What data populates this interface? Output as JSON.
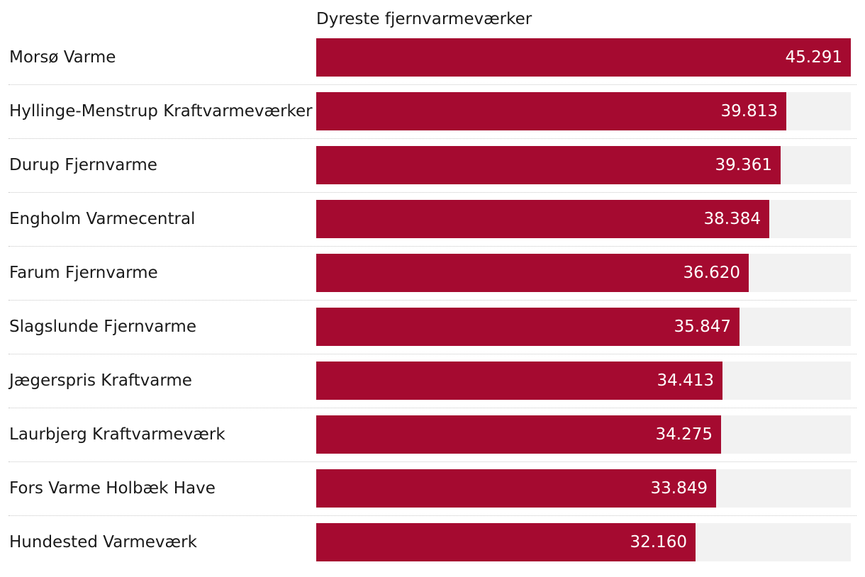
{
  "chart_data": {
    "type": "bar",
    "orientation": "horizontal",
    "title": "Dyreste fjernvarmeværker",
    "xlim": [
      0,
      45.291
    ],
    "bar_color": "#a50a30",
    "track_color": "#f2f2f2",
    "categories": [
      "Morsø Varme",
      "Hyllinge-Menstrup Kraftvarmeværker",
      "Durup Fjernvarme",
      "Engholm Varmecentral",
      "Farum Fjernvarme",
      "Slagslunde Fjernvarme",
      "Jægerspris Kraftvarme",
      "Laurbjerg Kraftvarmeværk",
      "Fors Varme Holbæk Have",
      "Hundested Varmeværk"
    ],
    "values": [
      45.291,
      39.813,
      39.361,
      38.384,
      36.62,
      35.847,
      34.413,
      34.275,
      33.849,
      32.16
    ],
    "value_labels": [
      "45.291",
      "39.813",
      "39.361",
      "38.384",
      "36.620",
      "35.847",
      "34.413",
      "34.275",
      "33.849",
      "32.160"
    ]
  }
}
